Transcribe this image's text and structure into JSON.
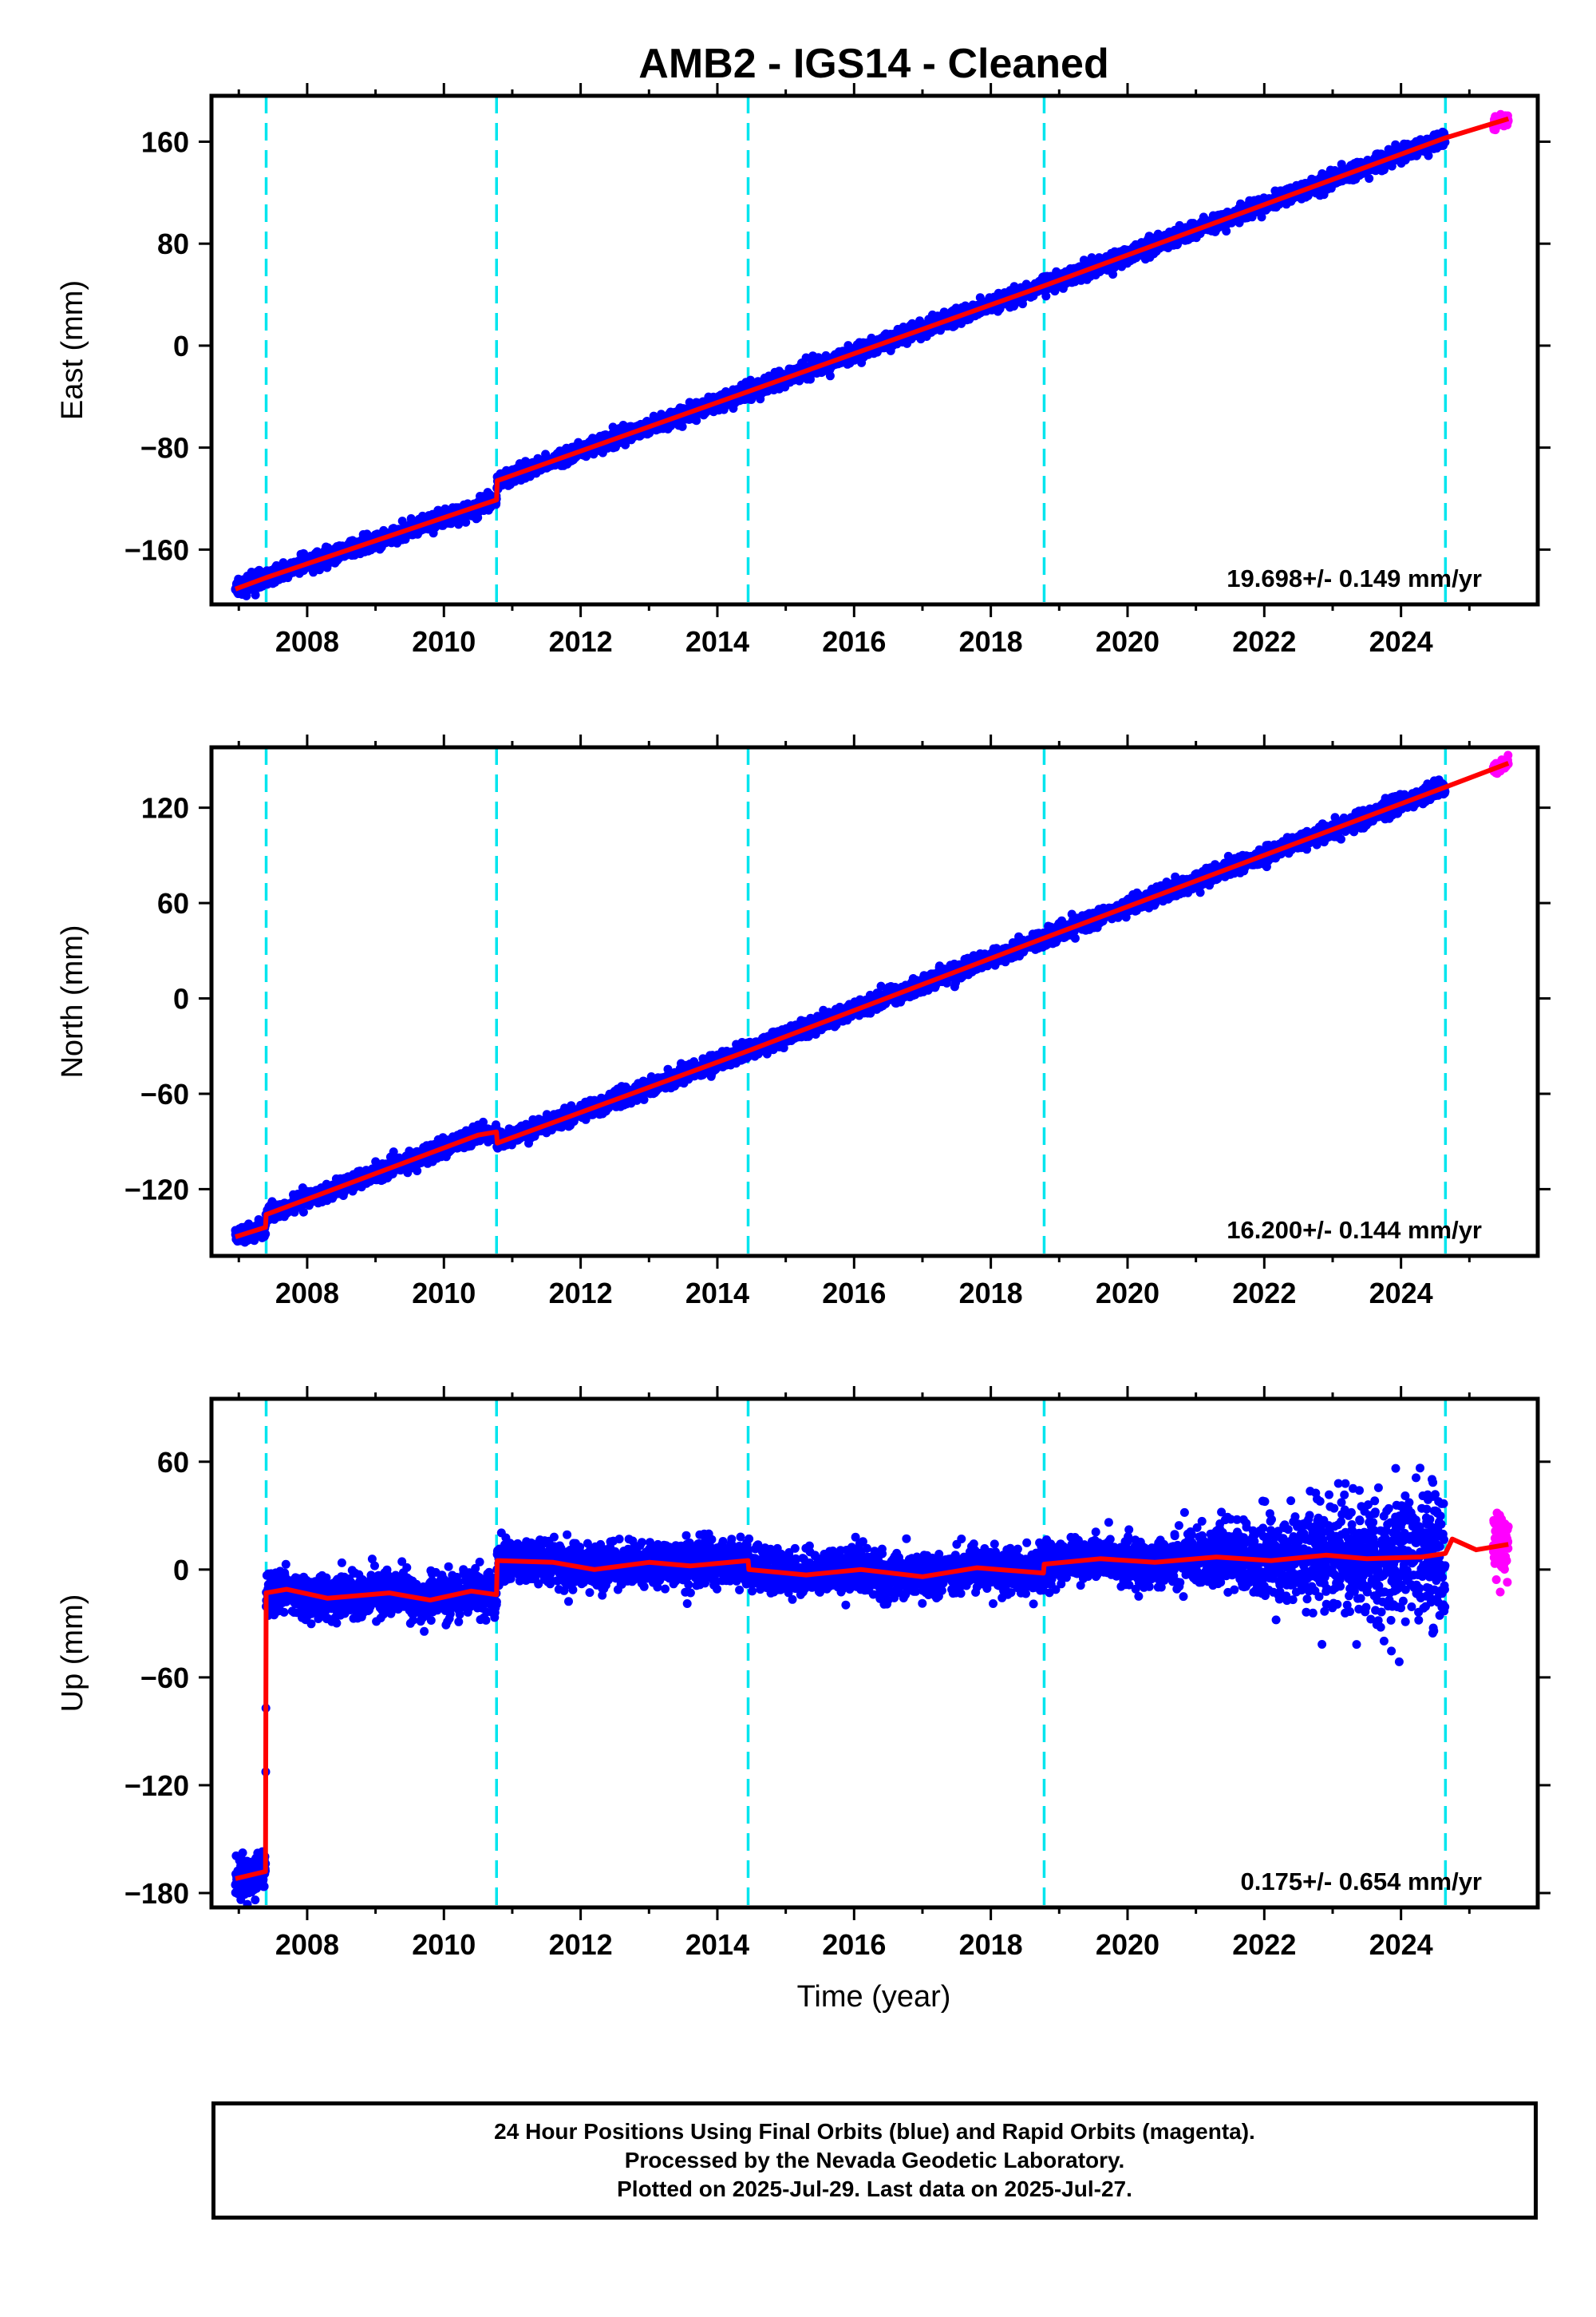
{
  "title": "AMB2  - IGS14 - Cleaned",
  "xlabel": "Time (year)",
  "footer": [
    "24 Hour Positions Using Final Orbits (blue) and Rapid Orbits (magenta).",
    "Processed by the Nevada Geodetic Laboratory.",
    "Plotted on 2025-Jul-29. Last data on 2025-Jul-27."
  ],
  "colors": {
    "final_orbits": "#0000ff",
    "rapid_orbits": "#ff00ff",
    "model": "#ff0000",
    "equipment_change": "#00e5ee",
    "frame": "#000000"
  },
  "chart_data": [
    {
      "type": "scatter",
      "ylabel": "East (mm)",
      "xlim": [
        2006.6,
        2026.0
      ],
      "ylim": [
        -203,
        196
      ],
      "xticks": [
        2008,
        2010,
        2012,
        2014,
        2016,
        2018,
        2020,
        2022,
        2024
      ],
      "yticks": [
        -160,
        -80,
        0,
        80,
        160
      ],
      "rate_label": "19.698+/- 0.149 mm/yr",
      "vertical_lines": [
        2007.4,
        2010.77,
        2014.45,
        2018.78,
        2024.65
      ],
      "final_range": [
        2006.95,
        2024.65
      ],
      "rapid_range": [
        2025.35,
        2025.57
      ],
      "scatter_sd": 3.0,
      "model": [
        [
          2006.95,
          -191
        ],
        [
          2007.4,
          -182
        ],
        [
          2010.77,
          -121
        ],
        [
          2010.78,
          -106
        ],
        [
          2014.45,
          -36
        ],
        [
          2018.78,
          47
        ],
        [
          2024.65,
          163
        ],
        [
          2025.57,
          178
        ]
      ],
      "series": [
        {
          "name": "Final Orbits",
          "color": "#0000ff",
          "x_start": 2006.95,
          "x_end": 2024.65
        },
        {
          "name": "Rapid Orbits",
          "color": "#ff00ff",
          "x_start": 2025.35,
          "x_end": 2025.57
        }
      ]
    },
    {
      "type": "scatter",
      "ylabel": "North (mm)",
      "xlim": [
        2006.6,
        2026.0
      ],
      "ylim": [
        -162,
        158
      ],
      "xticks": [
        2008,
        2010,
        2012,
        2014,
        2016,
        2018,
        2020,
        2022,
        2024
      ],
      "yticks": [
        -120,
        -60,
        0,
        60,
        120
      ],
      "rate_label": "16.200+/- 0.144 mm/yr",
      "vertical_lines": [
        2007.4,
        2010.77,
        2014.45,
        2018.78,
        2024.65
      ],
      "final_range": [
        2006.95,
        2024.65
      ],
      "rapid_range": [
        2025.35,
        2025.57
      ],
      "scatter_sd": 2.5,
      "model": [
        [
          2006.95,
          -150
        ],
        [
          2007.39,
          -144
        ],
        [
          2007.4,
          -136
        ],
        [
          2010.5,
          -86
        ],
        [
          2010.77,
          -84
        ],
        [
          2010.78,
          -91
        ],
        [
          2014.45,
          -33
        ],
        [
          2018.78,
          38
        ],
        [
          2024.65,
          133
        ],
        [
          2025.57,
          148
        ]
      ],
      "series": [
        {
          "name": "Final Orbits",
          "color": "#0000ff",
          "x_start": 2006.95,
          "x_end": 2024.65
        },
        {
          "name": "Rapid Orbits",
          "color": "#ff00ff",
          "x_start": 2025.35,
          "x_end": 2025.57
        }
      ]
    },
    {
      "type": "scatter",
      "ylabel": "Up (mm)",
      "xlim": [
        2006.6,
        2026.0
      ],
      "ylim": [
        -188,
        95
      ],
      "xticks": [
        2008,
        2010,
        2012,
        2014,
        2016,
        2018,
        2020,
        2022,
        2024
      ],
      "yticks": [
        -180,
        -120,
        -60,
        0,
        60
      ],
      "rate_label": "0.175+/- 0.654 mm/yr",
      "vertical_lines": [
        2007.4,
        2010.77,
        2014.45,
        2018.78,
        2024.65
      ],
      "final_range": [
        2006.95,
        2024.65
      ],
      "rapid_range": [
        2025.35,
        2025.57
      ],
      "scatter_sd": 6.0,
      "model": [
        [
          2006.95,
          -172
        ],
        [
          2007.39,
          -168
        ],
        [
          2007.4,
          -13
        ],
        [
          2007.7,
          -11
        ],
        [
          2008.3,
          -16
        ],
        [
          2009.2,
          -13
        ],
        [
          2009.8,
          -17
        ],
        [
          2010.4,
          -12
        ],
        [
          2010.77,
          -14
        ],
        [
          2010.78,
          5
        ],
        [
          2011.6,
          4
        ],
        [
          2012.2,
          0
        ],
        [
          2013.0,
          4
        ],
        [
          2013.6,
          2
        ],
        [
          2014.45,
          5
        ],
        [
          2014.46,
          0
        ],
        [
          2015.3,
          -3
        ],
        [
          2016.1,
          0
        ],
        [
          2017.0,
          -4
        ],
        [
          2017.8,
          1
        ],
        [
          2018.77,
          -2
        ],
        [
          2018.78,
          3
        ],
        [
          2019.6,
          6
        ],
        [
          2020.4,
          4
        ],
        [
          2021.3,
          7
        ],
        [
          2022.1,
          5
        ],
        [
          2022.9,
          8
        ],
        [
          2023.5,
          6
        ],
        [
          2024.3,
          7
        ],
        [
          2024.65,
          9
        ],
        [
          2024.75,
          17
        ],
        [
          2025.1,
          11
        ],
        [
          2025.57,
          14
        ]
      ],
      "series": [
        {
          "name": "Final Orbits",
          "color": "#0000ff",
          "x_start": 2006.95,
          "x_end": 2024.65
        },
        {
          "name": "Rapid Orbits",
          "color": "#ff00ff",
          "x_start": 2025.35,
          "x_end": 2025.57
        }
      ]
    }
  ]
}
